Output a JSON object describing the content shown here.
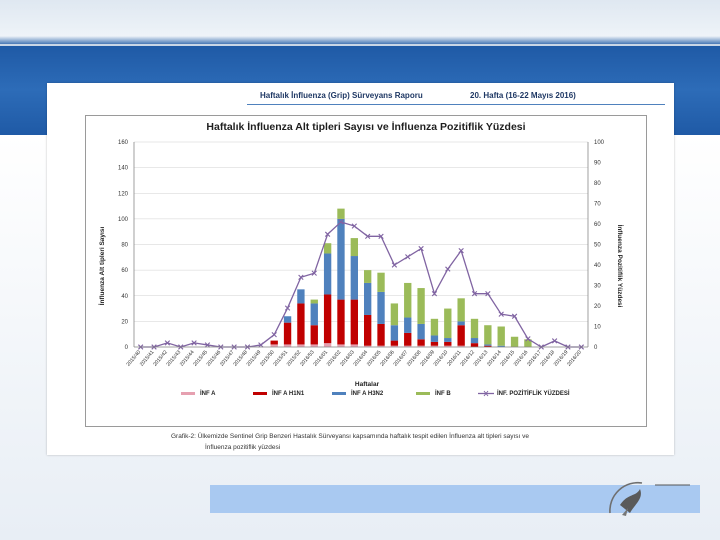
{
  "report": {
    "header_left": "Haftalık İnfluenza (Grip) Sürveyans Raporu",
    "header_right": "20. Hafta (16-22 Mayıs 2016)",
    "caption_line1": "Grafik-2: Ülkemizde Sentinel Grip Benzeri Hastalık Sürveyansı kapsamında haftalık tespit edilen İnfluenza alt tipleri sayısı ve",
    "caption_line2": "İnfluenza pozitiflik yüzdesi"
  },
  "colors": {
    "inf_a": "#e6a0b0",
    "inf_a_h1n1": "#c00000",
    "inf_a_h3n2": "#4f81bd",
    "inf_b": "#9bbb59",
    "positivity": "#8064a2",
    "top_band": "#1f5aa6",
    "bottom_bar": "#a9c9f1"
  },
  "chart_data": {
    "type": "bar",
    "stacked": true,
    "title": "Haftalık İnfluenza Alt tipleri Sayısı ve İnfluenza Pozitiflik Yüzdesi",
    "xlabel": "Haftalar",
    "ylabel": "İnfluenza Alt tipleri Sayısı",
    "y2label": "İnfluenza Pozitiflik Yüzdesi",
    "ylim": [
      0,
      160
    ],
    "y2lim": [
      0,
      100
    ],
    "yticks": [
      0,
      20,
      40,
      60,
      80,
      100,
      120,
      140,
      160
    ],
    "y2ticks": [
      0,
      10,
      20,
      30,
      40,
      50,
      60,
      70,
      80,
      90,
      100
    ],
    "grid": true,
    "legend_position": "bottom",
    "categories": [
      "2015/40",
      "2015/41",
      "2015/42",
      "2015/43",
      "2015/44",
      "2015/45",
      "2015/46",
      "2015/47",
      "2015/48",
      "2015/49",
      "2015/50",
      "2015/51",
      "2015/52",
      "2016/53",
      "2016/01",
      "2016/02",
      "2016/03",
      "2016/04",
      "2016/05",
      "2016/06",
      "2016/07",
      "2016/08",
      "2016/09",
      "2016/10",
      "2016/11",
      "2016/12",
      "2016/13",
      "2016/14",
      "2016/15",
      "2016/16",
      "2016/17",
      "2016/18",
      "2016/19",
      "2016/20"
    ],
    "series": [
      {
        "name": "İNF A",
        "axis": "left",
        "kind": "bar",
        "values": [
          0,
          0,
          0,
          0,
          0,
          0,
          0,
          0,
          0,
          0,
          2,
          2,
          2,
          2,
          3,
          2,
          2,
          1,
          1,
          1,
          1,
          1,
          1,
          1,
          1,
          0,
          0,
          0,
          0,
          0,
          0,
          0,
          0,
          0
        ]
      },
      {
        "name": "İNF A H1N1",
        "axis": "left",
        "kind": "bar",
        "values": [
          0,
          0,
          0,
          0,
          0,
          0,
          0,
          0,
          0,
          0,
          3,
          17,
          32,
          15,
          38,
          35,
          35,
          24,
          17,
          4,
          10,
          5,
          3,
          3,
          16,
          3,
          1,
          0,
          0,
          0,
          0,
          0,
          0,
          0
        ]
      },
      {
        "name": "İNF A H3N2",
        "axis": "left",
        "kind": "bar",
        "values": [
          0,
          0,
          0,
          0,
          0,
          0,
          0,
          0,
          0,
          0,
          0,
          5,
          11,
          17,
          32,
          63,
          34,
          25,
          25,
          12,
          12,
          12,
          5,
          3,
          3,
          4,
          1,
          1,
          0,
          0,
          0,
          0,
          0,
          0
        ]
      },
      {
        "name": "İNF B",
        "axis": "left",
        "kind": "bar",
        "values": [
          0,
          0,
          0,
          0,
          0,
          0,
          0,
          0,
          0,
          0,
          0,
          0,
          0,
          3,
          8,
          8,
          14,
          10,
          15,
          17,
          27,
          28,
          13,
          23,
          18,
          15,
          15,
          15,
          8,
          6,
          0,
          0,
          0,
          0
        ]
      },
      {
        "name": "İNF. POZİTİFLİK YÜZDESİ",
        "axis": "right",
        "kind": "line",
        "values": [
          0,
          0,
          2,
          0,
          2,
          1,
          0,
          0,
          0,
          1,
          6,
          19,
          34,
          36,
          55,
          61,
          59,
          54,
          54,
          40,
          44,
          48,
          26,
          38,
          47,
          26,
          26,
          16,
          15,
          4,
          0,
          3,
          0,
          0
        ]
      }
    ]
  }
}
